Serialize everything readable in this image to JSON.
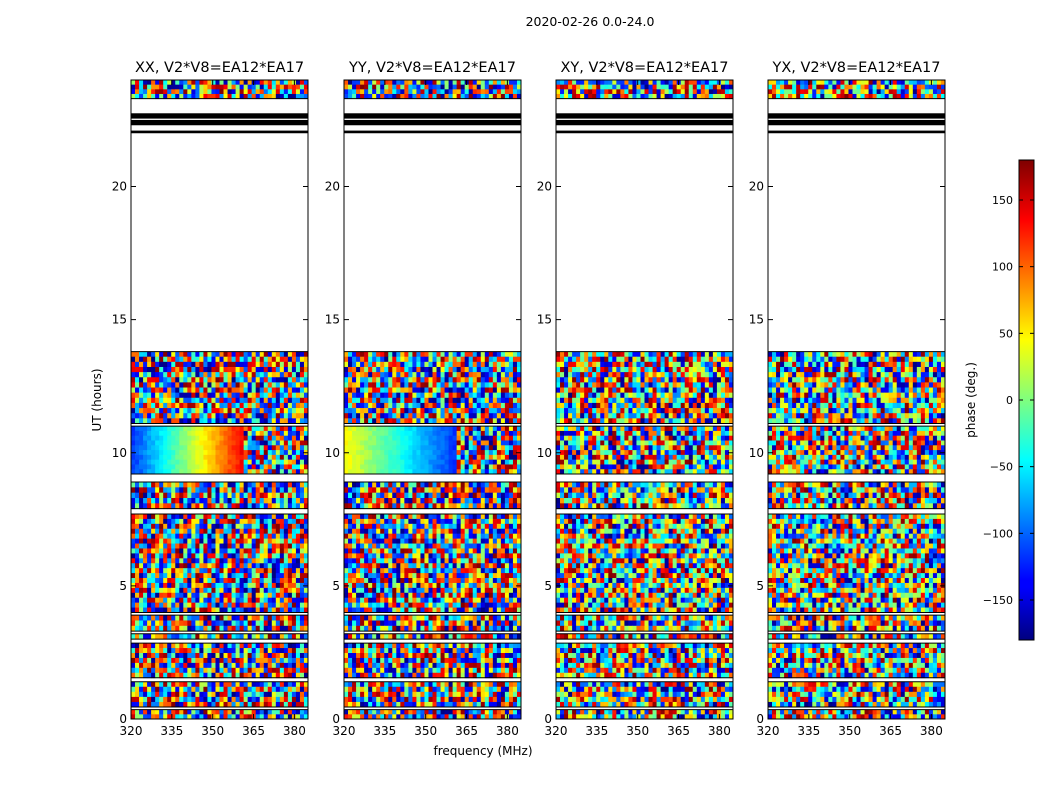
{
  "figure": {
    "suptitle": "2020-02-26 0.0-24.0",
    "xlabel": "frequency (MHz)",
    "ylabel": "UT (hours)"
  },
  "colorbar": {
    "label": "phase (deg.)",
    "range": [
      -180,
      180
    ],
    "ticks": [
      -150,
      -100,
      -50,
      0,
      50,
      100,
      150
    ],
    "tick_labels": [
      "−150",
      "−100",
      "−50",
      "0",
      "50",
      "100",
      "150"
    ],
    "colormap": "jet"
  },
  "chart_data": [
    {
      "type": "heatmap",
      "title": "XX, V2*V8=EA12*EA17",
      "xlim": [
        320,
        385
      ],
      "ylim": [
        0,
        24
      ],
      "xticks": [
        320,
        335,
        350,
        365,
        380
      ],
      "yticks": [
        0,
        5,
        10,
        15,
        20
      ],
      "value": "phase (deg.)",
      "data_rows_hours": [
        [
          0,
          0.35
        ],
        [
          0.45,
          1.4
        ],
        [
          1.55,
          2.85
        ],
        [
          3.0,
          3.2
        ],
        [
          3.3,
          3.9
        ],
        [
          4.0,
          7.7
        ],
        [
          7.9,
          8.9
        ],
        [
          9.2,
          11.0
        ],
        [
          11.1,
          13.8
        ],
        [
          23.3,
          24.0
        ]
      ],
      "flagged_gaps_hours": [
        [
          22.0,
          22.1
        ],
        [
          22.3,
          22.5
        ],
        [
          22.55,
          22.75
        ]
      ]
    },
    {
      "type": "heatmap",
      "title": "YY, V2*V8=EA12*EA17",
      "xlim": [
        320,
        385
      ],
      "ylim": [
        0,
        24
      ],
      "xticks": [
        320,
        335,
        350,
        365,
        380
      ],
      "yticks": [
        0,
        5,
        10,
        15,
        20
      ],
      "value": "phase (deg.)",
      "data_rows_hours": [
        [
          0,
          0.35
        ],
        [
          0.45,
          1.4
        ],
        [
          1.55,
          2.85
        ],
        [
          3.0,
          3.2
        ],
        [
          3.3,
          3.9
        ],
        [
          4.0,
          7.7
        ],
        [
          7.9,
          8.9
        ],
        [
          9.2,
          11.0
        ],
        [
          11.1,
          13.8
        ],
        [
          23.3,
          24.0
        ]
      ],
      "flagged_gaps_hours": [
        [
          22.0,
          22.1
        ],
        [
          22.3,
          22.5
        ],
        [
          22.55,
          22.75
        ]
      ]
    },
    {
      "type": "heatmap",
      "title": "XY, V2*V8=EA12*EA17",
      "xlim": [
        320,
        385
      ],
      "ylim": [
        0,
        24
      ],
      "xticks": [
        320,
        335,
        350,
        365,
        380
      ],
      "yticks": [
        0,
        5,
        10,
        15,
        20
      ],
      "value": "phase (deg.)",
      "data_rows_hours": [
        [
          0,
          0.35
        ],
        [
          0.45,
          1.4
        ],
        [
          1.55,
          2.85
        ],
        [
          3.0,
          3.2
        ],
        [
          3.3,
          3.9
        ],
        [
          4.0,
          7.7
        ],
        [
          7.9,
          8.9
        ],
        [
          9.2,
          11.0
        ],
        [
          11.1,
          13.8
        ],
        [
          23.3,
          24.0
        ]
      ],
      "flagged_gaps_hours": [
        [
          22.0,
          22.1
        ],
        [
          22.3,
          22.5
        ],
        [
          22.55,
          22.75
        ]
      ]
    },
    {
      "type": "heatmap",
      "title": "YX, V2*V8=EA12*EA17",
      "xlim": [
        320,
        385
      ],
      "ylim": [
        0,
        24
      ],
      "xticks": [
        320,
        335,
        350,
        365,
        380
      ],
      "yticks": [
        0,
        5,
        10,
        15,
        20
      ],
      "value": "phase (deg.)",
      "data_rows_hours": [
        [
          0,
          0.35
        ],
        [
          0.45,
          1.4
        ],
        [
          1.55,
          2.85
        ],
        [
          3.0,
          3.2
        ],
        [
          3.3,
          3.9
        ],
        [
          4.0,
          7.7
        ],
        [
          7.9,
          8.9
        ],
        [
          9.2,
          11.0
        ],
        [
          11.1,
          13.8
        ],
        [
          23.3,
          24.0
        ]
      ],
      "flagged_gaps_hours": [
        [
          22.0,
          22.1
        ],
        [
          22.3,
          22.5
        ],
        [
          22.55,
          22.75
        ]
      ]
    }
  ]
}
